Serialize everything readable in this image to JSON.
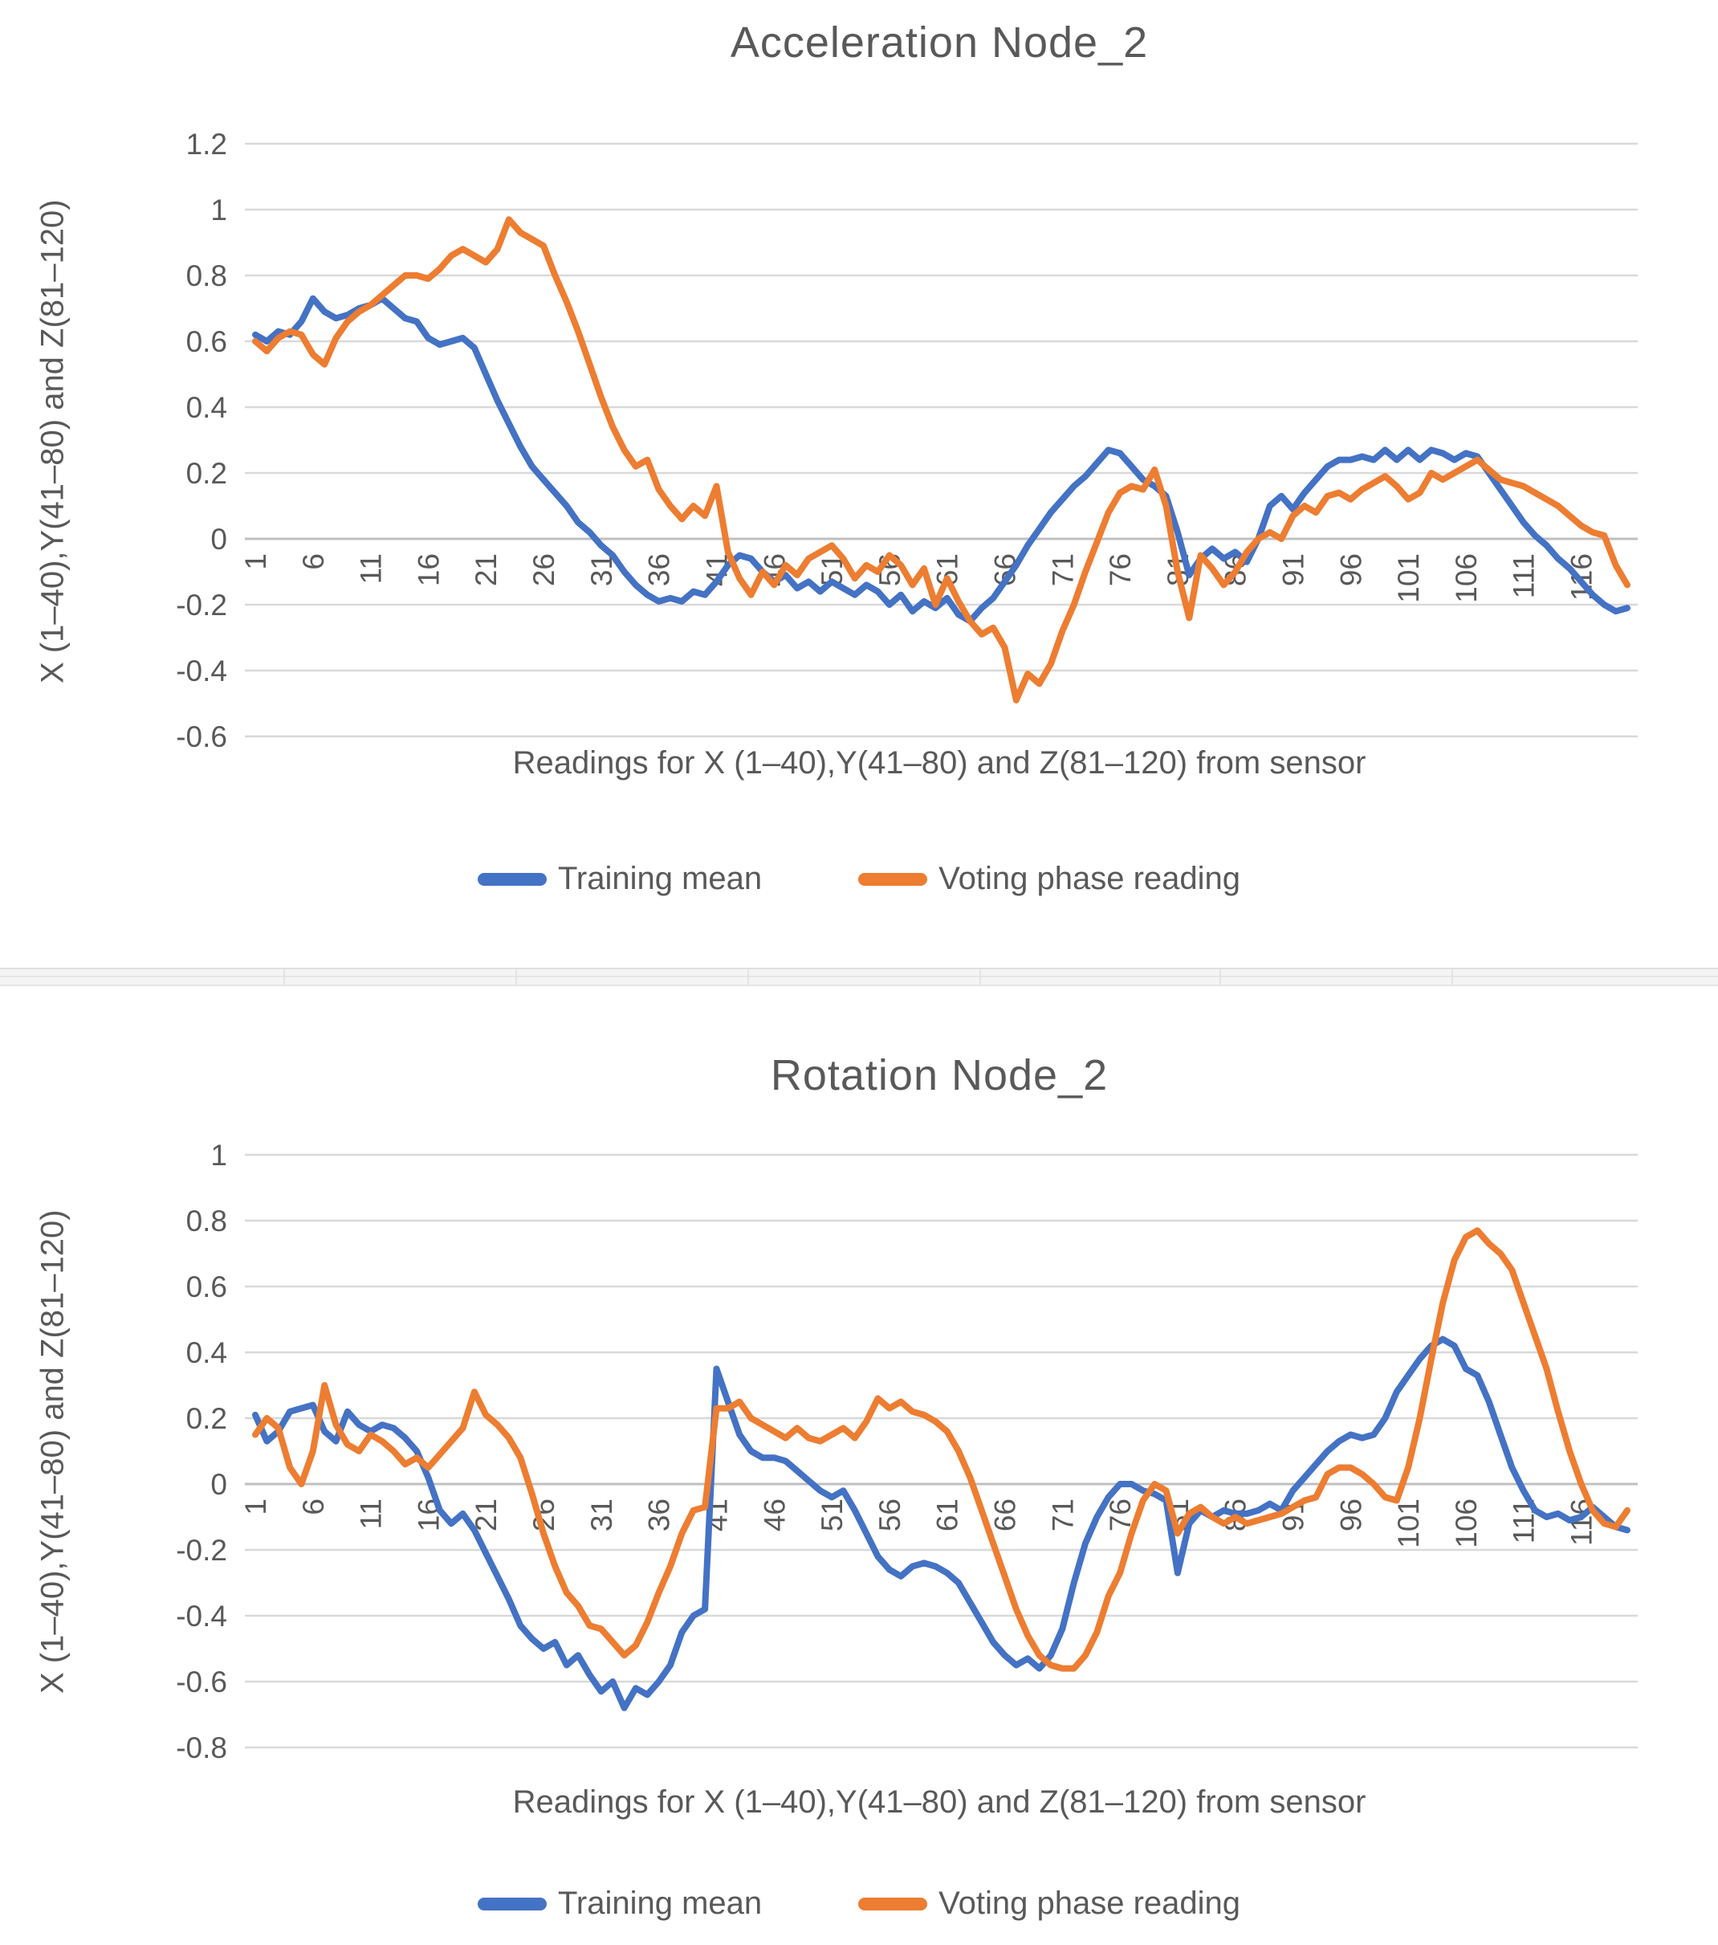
{
  "colors": {
    "series_blue": "#4472C4",
    "series_orange": "#ED7D31",
    "gridline": "#D9D9D9",
    "zero_axis": "#BFBFBF",
    "text": "#595959"
  },
  "chart_data": [
    {
      "type": "line",
      "title": "Acceleration Node_2",
      "xlabel": "Readings for X (1–40),Y(41–80) and Z(81–120) from sensor",
      "ylabel": "X (1–40),Y(41–80) and Z(81–120)",
      "ylim": [
        -0.6,
        1.2
      ],
      "grid": true,
      "legend_position": "bottom",
      "n_points": 120,
      "x_tick_labels": [
        "1",
        "6",
        "11",
        "16",
        "21",
        "26",
        "31",
        "36",
        "41",
        "46",
        "51",
        "56",
        "61",
        "66",
        "71",
        "76",
        "81",
        "86",
        "91",
        "96",
        "101",
        "106",
        "111",
        "116"
      ],
      "y_tick_labels": [
        "1.2",
        "1",
        "0.8",
        "0.6",
        "0.4",
        "0.2",
        "0",
        "-0.2",
        "-0.4",
        "-0.6"
      ],
      "y_tick_values": [
        1.2,
        1,
        0.8,
        0.6,
        0.4,
        0.2,
        0,
        -0.2,
        -0.4,
        -0.6
      ],
      "series": [
        {
          "name": "Training mean",
          "color": "#4472C4",
          "values": [
            0.62,
            0.6,
            0.63,
            0.62,
            0.66,
            0.73,
            0.69,
            0.67,
            0.68,
            0.7,
            0.71,
            0.73,
            0.7,
            0.67,
            0.66,
            0.61,
            0.59,
            0.6,
            0.61,
            0.58,
            0.5,
            0.42,
            0.35,
            0.28,
            0.22,
            0.18,
            0.14,
            0.1,
            0.05,
            0.02,
            -0.02,
            -0.05,
            -0.1,
            -0.14,
            -0.17,
            -0.19,
            -0.18,
            -0.19,
            -0.16,
            -0.17,
            -0.13,
            -0.08,
            -0.05,
            -0.06,
            -0.1,
            -0.13,
            -0.11,
            -0.15,
            -0.13,
            -0.16,
            -0.13,
            -0.15,
            -0.17,
            -0.14,
            -0.16,
            -0.2,
            -0.17,
            -0.22,
            -0.19,
            -0.21,
            -0.18,
            -0.23,
            -0.25,
            -0.21,
            -0.18,
            -0.13,
            -0.08,
            -0.02,
            0.03,
            0.08,
            0.12,
            0.16,
            0.19,
            0.23,
            0.27,
            0.26,
            0.22,
            0.18,
            0.16,
            0.13,
            0.02,
            -0.11,
            -0.06,
            -0.03,
            -0.06,
            -0.04,
            -0.07,
            0.0,
            0.1,
            0.13,
            0.09,
            0.14,
            0.18,
            0.22,
            0.24,
            0.24,
            0.25,
            0.24,
            0.27,
            0.24,
            0.27,
            0.24,
            0.27,
            0.26,
            0.24,
            0.26,
            0.25,
            0.2,
            0.15,
            0.1,
            0.05,
            0.01,
            -0.02,
            -0.06,
            -0.09,
            -0.13,
            -0.17,
            -0.2,
            -0.22,
            -0.21
          ]
        },
        {
          "name": "Voting phase reading",
          "color": "#ED7D31",
          "values": [
            0.6,
            0.57,
            0.61,
            0.63,
            0.62,
            0.56,
            0.53,
            0.61,
            0.66,
            0.69,
            0.71,
            0.74,
            0.77,
            0.8,
            0.8,
            0.79,
            0.82,
            0.86,
            0.88,
            0.86,
            0.84,
            0.88,
            0.97,
            0.93,
            0.91,
            0.89,
            0.8,
            0.72,
            0.63,
            0.53,
            0.43,
            0.34,
            0.27,
            0.22,
            0.24,
            0.15,
            0.1,
            0.06,
            0.1,
            0.07,
            0.16,
            -0.04,
            -0.12,
            -0.17,
            -0.1,
            -0.14,
            -0.08,
            -0.11,
            -0.06,
            -0.04,
            -0.02,
            -0.06,
            -0.12,
            -0.08,
            -0.1,
            -0.05,
            -0.08,
            -0.14,
            -0.09,
            -0.2,
            -0.12,
            -0.19,
            -0.25,
            -0.29,
            -0.27,
            -0.33,
            -0.49,
            -0.41,
            -0.44,
            -0.38,
            -0.28,
            -0.2,
            -0.1,
            -0.01,
            0.08,
            0.14,
            0.16,
            0.15,
            0.21,
            0.1,
            -0.1,
            -0.24,
            -0.05,
            -0.09,
            -0.14,
            -0.1,
            -0.04,
            0.0,
            0.02,
            0.0,
            0.07,
            0.1,
            0.08,
            0.13,
            0.14,
            0.12,
            0.15,
            0.17,
            0.19,
            0.16,
            0.12,
            0.14,
            0.2,
            0.18,
            0.2,
            0.22,
            0.24,
            0.21,
            0.18,
            0.17,
            0.16,
            0.14,
            0.12,
            0.1,
            0.07,
            0.04,
            0.02,
            0.01,
            -0.08,
            -0.14
          ]
        }
      ]
    },
    {
      "type": "line",
      "title": "Rotation Node_2",
      "xlabel": "Readings for X (1–40),Y(41–80) and Z(81–120) from sensor",
      "ylabel": "X (1–40),Y(41–80) and Z(81–120)",
      "ylim": [
        -0.8,
        1.0
      ],
      "grid": true,
      "legend_position": "bottom",
      "n_points": 120,
      "x_tick_labels": [
        "1",
        "6",
        "11",
        "16",
        "21",
        "26",
        "31",
        "36",
        "41",
        "46",
        "51",
        "56",
        "61",
        "66",
        "71",
        "76",
        "81",
        "86",
        "91",
        "96",
        "101",
        "106",
        "111",
        "116"
      ],
      "y_tick_labels": [
        "1",
        "0.8",
        "0.6",
        "0.4",
        "0.2",
        "0",
        "-0.2",
        "-0.4",
        "-0.6",
        "-0.8"
      ],
      "y_tick_values": [
        1,
        0.8,
        0.6,
        0.4,
        0.2,
        0,
        -0.2,
        -0.4,
        -0.6,
        -0.8
      ],
      "series": [
        {
          "name": "Training mean",
          "color": "#4472C4",
          "values": [
            0.21,
            0.13,
            0.16,
            0.22,
            0.23,
            0.24,
            0.16,
            0.13,
            0.22,
            0.18,
            0.16,
            0.18,
            0.17,
            0.14,
            0.1,
            0.02,
            -0.08,
            -0.12,
            -0.09,
            -0.14,
            -0.21,
            -0.28,
            -0.35,
            -0.43,
            -0.47,
            -0.5,
            -0.48,
            -0.55,
            -0.52,
            -0.58,
            -0.63,
            -0.6,
            -0.68,
            -0.62,
            -0.64,
            -0.6,
            -0.55,
            -0.45,
            -0.4,
            -0.38,
            0.35,
            0.25,
            0.15,
            0.1,
            0.08,
            0.08,
            0.07,
            0.04,
            0.01,
            -0.02,
            -0.04,
            -0.02,
            -0.08,
            -0.15,
            -0.22,
            -0.26,
            -0.28,
            -0.25,
            -0.24,
            -0.25,
            -0.27,
            -0.3,
            -0.36,
            -0.42,
            -0.48,
            -0.52,
            -0.55,
            -0.53,
            -0.56,
            -0.52,
            -0.44,
            -0.3,
            -0.18,
            -0.1,
            -0.04,
            0.0,
            0.0,
            -0.02,
            -0.03,
            -0.05,
            -0.27,
            -0.12,
            -0.08,
            -0.1,
            -0.08,
            -0.09,
            -0.09,
            -0.08,
            -0.06,
            -0.08,
            -0.02,
            0.02,
            0.06,
            0.1,
            0.13,
            0.15,
            0.14,
            0.15,
            0.2,
            0.28,
            0.33,
            0.38,
            0.42,
            0.44,
            0.42,
            0.35,
            0.33,
            0.25,
            0.15,
            0.05,
            -0.02,
            -0.08,
            -0.1,
            -0.09,
            -0.11,
            -0.1,
            -0.07,
            -0.1,
            -0.13,
            -0.14
          ]
        },
        {
          "name": "Voting phase reading",
          "color": "#ED7D31",
          "values": [
            0.15,
            0.2,
            0.17,
            0.05,
            0.0,
            0.1,
            0.3,
            0.18,
            0.12,
            0.1,
            0.15,
            0.13,
            0.1,
            0.06,
            0.08,
            0.05,
            0.09,
            0.13,
            0.17,
            0.28,
            0.21,
            0.18,
            0.14,
            0.08,
            -0.03,
            -0.15,
            -0.25,
            -0.33,
            -0.37,
            -0.43,
            -0.44,
            -0.48,
            -0.52,
            -0.49,
            -0.42,
            -0.33,
            -0.25,
            -0.15,
            -0.08,
            -0.07,
            0.23,
            0.23,
            0.25,
            0.2,
            0.18,
            0.16,
            0.14,
            0.17,
            0.14,
            0.13,
            0.15,
            0.17,
            0.14,
            0.19,
            0.26,
            0.23,
            0.25,
            0.22,
            0.21,
            0.19,
            0.16,
            0.1,
            0.02,
            -0.08,
            -0.18,
            -0.28,
            -0.38,
            -0.46,
            -0.52,
            -0.55,
            -0.56,
            -0.56,
            -0.52,
            -0.45,
            -0.34,
            -0.27,
            -0.15,
            -0.05,
            0.0,
            -0.02,
            -0.15,
            -0.09,
            -0.07,
            -0.1,
            -0.12,
            -0.1,
            -0.12,
            -0.11,
            -0.1,
            -0.09,
            -0.07,
            -0.05,
            -0.04,
            0.03,
            0.05,
            0.05,
            0.03,
            0.0,
            -0.04,
            -0.05,
            0.05,
            0.2,
            0.38,
            0.55,
            0.68,
            0.75,
            0.77,
            0.73,
            0.7,
            0.65,
            0.55,
            0.45,
            0.35,
            0.22,
            0.1,
            0.0,
            -0.08,
            -0.12,
            -0.13,
            -0.08
          ]
        }
      ]
    }
  ]
}
